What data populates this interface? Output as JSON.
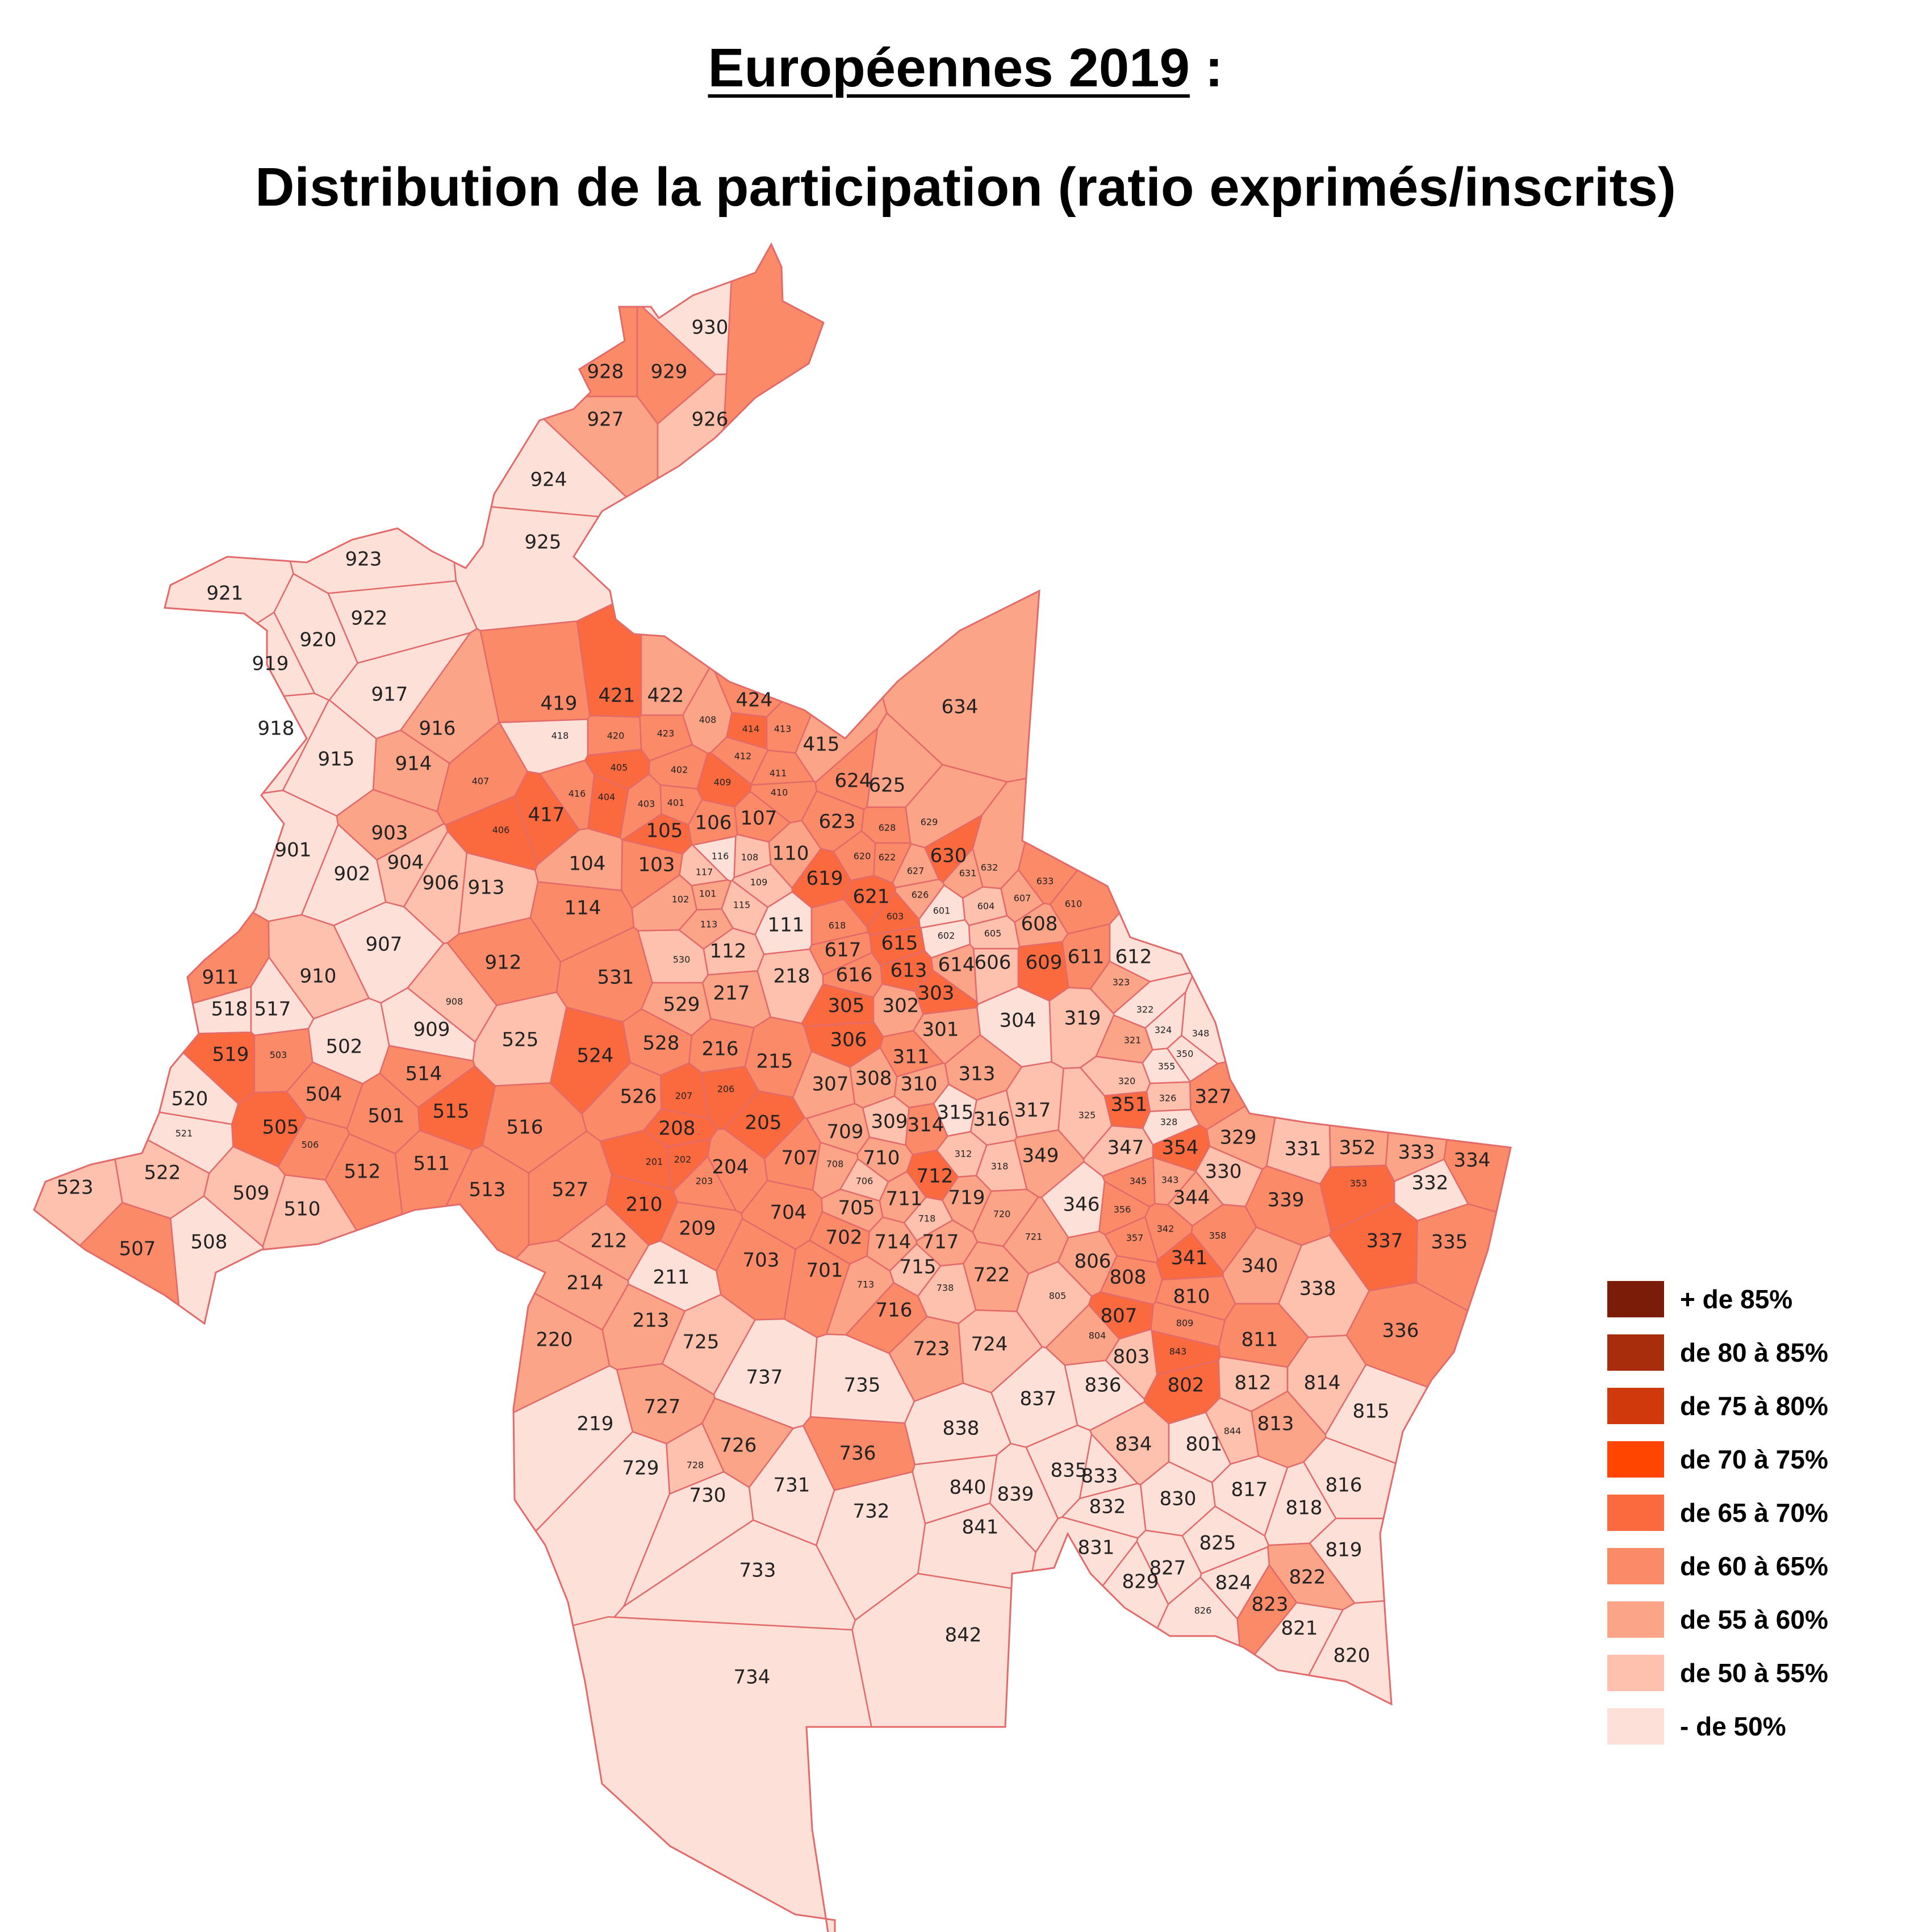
{
  "title": {
    "main": "Européennes 2019",
    "suffix": " :",
    "subtitle": "Distribution de la participation (ratio exprimés/inscrits)"
  },
  "legend": [
    {
      "label": "+ de 85%",
      "color": "#7a1c08"
    },
    {
      "label": "de 80 à 85%",
      "color": "#a82d0d"
    },
    {
      "label": "de 75 à 80%",
      "color": "#d0390c"
    },
    {
      "label": "de 70 à 75%",
      "color": "#ff4500"
    },
    {
      "label": "de 65 à 70%",
      "color": "#fb6a3f"
    },
    {
      "label": "de 60 à 65%",
      "color": "#fb8a68"
    },
    {
      "label": "de 55 à 60%",
      "color": "#fca487"
    },
    {
      "label": "de 50 à 55%",
      "color": "#fdc1ae"
    },
    {
      "label": "- de 50%",
      "color": "#fde0d8"
    }
  ],
  "bureaux": [
    {
      "id": "930",
      "cls": 8
    },
    {
      "id": "928",
      "cls": 5
    },
    {
      "id": "929",
      "cls": 5
    },
    {
      "id": "927",
      "cls": 6
    },
    {
      "id": "926",
      "cls": 7
    },
    {
      "id": "924",
      "cls": 8
    },
    {
      "id": "925",
      "cls": 8
    },
    {
      "id": "923",
      "cls": 8
    },
    {
      "id": "921",
      "cls": 8
    },
    {
      "id": "922",
      "cls": 8
    },
    {
      "id": "920",
      "cls": 8
    },
    {
      "id": "919",
      "cls": 8
    },
    {
      "id": "918",
      "cls": 8
    },
    {
      "id": "917",
      "cls": 8
    },
    {
      "id": "915",
      "cls": 8
    },
    {
      "id": "916",
      "cls": 6
    },
    {
      "id": "914",
      "cls": 6
    },
    {
      "id": "901",
      "cls": 8
    },
    {
      "id": "902",
      "cls": 8
    },
    {
      "id": "903",
      "cls": 6
    },
    {
      "id": "904",
      "cls": 7
    },
    {
      "id": "906",
      "cls": 7
    },
    {
      "id": "913",
      "cls": 7
    },
    {
      "id": "907",
      "cls": 8
    },
    {
      "id": "910",
      "cls": 7
    },
    {
      "id": "911",
      "cls": 5
    },
    {
      "id": "912",
      "cls": 5
    },
    {
      "id": "908",
      "cls": 7
    },
    {
      "id": "909",
      "cls": 8
    },
    {
      "id": "518",
      "cls": 8
    },
    {
      "id": "517",
      "cls": 8
    },
    {
      "id": "519",
      "cls": 4
    },
    {
      "id": "503",
      "cls": 5
    },
    {
      "id": "502",
      "cls": 8
    },
    {
      "id": "504",
      "cls": 5
    },
    {
      "id": "514",
      "cls": 5
    },
    {
      "id": "520",
      "cls": 8
    },
    {
      "id": "521",
      "cls": 8
    },
    {
      "id": "505",
      "cls": 4
    },
    {
      "id": "506",
      "cls": 5
    },
    {
      "id": "501",
      "cls": 5
    },
    {
      "id": "515",
      "cls": 4
    },
    {
      "id": "516",
      "cls": 5
    },
    {
      "id": "522",
      "cls": 7
    },
    {
      "id": "523",
      "cls": 7
    },
    {
      "id": "512",
      "cls": 5
    },
    {
      "id": "511",
      "cls": 5
    },
    {
      "id": "513",
      "cls": 5
    },
    {
      "id": "509",
      "cls": 7
    },
    {
      "id": "510",
      "cls": 7
    },
    {
      "id": "507",
      "cls": 5
    },
    {
      "id": "508",
      "cls": 8
    },
    {
      "id": "525",
      "cls": 7
    },
    {
      "id": "524",
      "cls": 4
    },
    {
      "id": "526",
      "cls": 5
    },
    {
      "id": "527",
      "cls": 5
    },
    {
      "id": "531",
      "cls": 5
    },
    {
      "id": "530",
      "cls": 7
    },
    {
      "id": "529",
      "cls": 6
    },
    {
      "id": "528",
      "cls": 5
    },
    {
      "id": "419",
      "cls": 5
    },
    {
      "id": "421",
      "cls": 4
    },
    {
      "id": "422",
      "cls": 6
    },
    {
      "id": "424",
      "cls": 5
    },
    {
      "id": "418",
      "cls": 8
    },
    {
      "id": "420",
      "cls": 5
    },
    {
      "id": "423",
      "cls": 5
    },
    {
      "id": "408",
      "cls": 6
    },
    {
      "id": "414",
      "cls": 4
    },
    {
      "id": "413",
      "cls": 5
    },
    {
      "id": "415",
      "cls": 6
    },
    {
      "id": "407",
      "cls": 5
    },
    {
      "id": "405",
      "cls": 4
    },
    {
      "id": "402",
      "cls": 5
    },
    {
      "id": "412",
      "cls": 5
    },
    {
      "id": "411",
      "cls": 5
    },
    {
      "id": "409",
      "cls": 4
    },
    {
      "id": "410",
      "cls": 5
    },
    {
      "id": "417",
      "cls": 4
    },
    {
      "id": "416",
      "cls": 5
    },
    {
      "id": "404",
      "cls": 4
    },
    {
      "id": "403",
      "cls": 5
    },
    {
      "id": "401",
      "cls": 5
    },
    {
      "id": "406",
      "cls": 4
    },
    {
      "id": "105",
      "cls": 4
    },
    {
      "id": "106",
      "cls": 5
    },
    {
      "id": "107",
      "cls": 5
    },
    {
      "id": "104",
      "cls": 6
    },
    {
      "id": "103",
      "cls": 5
    },
    {
      "id": "116",
      "cls": 8
    },
    {
      "id": "108",
      "cls": 7
    },
    {
      "id": "110",
      "cls": 6
    },
    {
      "id": "117",
      "cls": 7
    },
    {
      "id": "101",
      "cls": 6
    },
    {
      "id": "109",
      "cls": 7
    },
    {
      "id": "102",
      "cls": 6
    },
    {
      "id": "115",
      "cls": 7
    },
    {
      "id": "113",
      "cls": 6
    },
    {
      "id": "114",
      "cls": 5
    },
    {
      "id": "111",
      "cls": 8
    },
    {
      "id": "112",
      "cls": 7
    },
    {
      "id": "217",
      "cls": 6
    },
    {
      "id": "218",
      "cls": 7
    },
    {
      "id": "215",
      "cls": 5
    },
    {
      "id": "216",
      "cls": 5
    },
    {
      "id": "207",
      "cls": 4
    },
    {
      "id": "206",
      "cls": 4
    },
    {
      "id": "205",
      "cls": 4
    },
    {
      "id": "208",
      "cls": 4
    },
    {
      "id": "201",
      "cls": 4
    },
    {
      "id": "202",
      "cls": 4
    },
    {
      "id": "203",
      "cls": 5
    },
    {
      "id": "204",
      "cls": 5
    },
    {
      "id": "210",
      "cls": 4
    },
    {
      "id": "209",
      "cls": 5
    },
    {
      "id": "212",
      "cls": 6
    },
    {
      "id": "211",
      "cls": 8
    },
    {
      "id": "214",
      "cls": 6
    },
    {
      "id": "213",
      "cls": 6
    },
    {
      "id": "220",
      "cls": 6
    },
    {
      "id": "219",
      "cls": 8
    },
    {
      "id": "634",
      "cls": 6
    },
    {
      "id": "624",
      "cls": 5
    },
    {
      "id": "625",
      "cls": 6
    },
    {
      "id": "623",
      "cls": 5
    },
    {
      "id": "628",
      "cls": 5
    },
    {
      "id": "629",
      "cls": 6
    },
    {
      "id": "630",
      "cls": 4
    },
    {
      "id": "620",
      "cls": 5
    },
    {
      "id": "622",
      "cls": 5
    },
    {
      "id": "627",
      "cls": 6
    },
    {
      "id": "631",
      "cls": 6
    },
    {
      "id": "632",
      "cls": 6
    },
    {
      "id": "633",
      "cls": 5
    },
    {
      "id": "619",
      "cls": 4
    },
    {
      "id": "621",
      "cls": 4
    },
    {
      "id": "626",
      "cls": 6
    },
    {
      "id": "604",
      "cls": 7
    },
    {
      "id": "607",
      "cls": 6
    },
    {
      "id": "610",
      "cls": 5
    },
    {
      "id": "603",
      "cls": 4
    },
    {
      "id": "601",
      "cls": 8
    },
    {
      "id": "618",
      "cls": 5
    },
    {
      "id": "602",
      "cls": 8
    },
    {
      "id": "605",
      "cls": 7
    },
    {
      "id": "608",
      "cls": 6
    },
    {
      "id": "617",
      "cls": 5
    },
    {
      "id": "615",
      "cls": 4
    },
    {
      "id": "614",
      "cls": 6
    },
    {
      "id": "606",
      "cls": 7
    },
    {
      "id": "609",
      "cls": 4
    },
    {
      "id": "611",
      "cls": 5
    },
    {
      "id": "612",
      "cls": 8
    },
    {
      "id": "616",
      "cls": 5
    },
    {
      "id": "613",
      "cls": 4
    },
    {
      "id": "305",
      "cls": 4
    },
    {
      "id": "302",
      "cls": 6
    },
    {
      "id": "303",
      "cls": 4
    },
    {
      "id": "304",
      "cls": 8
    },
    {
      "id": "319",
      "cls": 7
    },
    {
      "id": "323",
      "cls": 6
    },
    {
      "id": "322",
      "cls": 8
    },
    {
      "id": "324",
      "cls": 8
    },
    {
      "id": "348",
      "cls": 8
    },
    {
      "id": "306",
      "cls": 4
    },
    {
      "id": "301",
      "cls": 6
    },
    {
      "id": "321",
      "cls": 6
    },
    {
      "id": "350",
      "cls": 8
    },
    {
      "id": "355",
      "cls": 8
    },
    {
      "id": "311",
      "cls": 5
    },
    {
      "id": "313",
      "cls": 6
    },
    {
      "id": "320",
      "cls": 7
    },
    {
      "id": "326",
      "cls": 7
    },
    {
      "id": "327",
      "cls": 5
    },
    {
      "id": "307",
      "cls": 6
    },
    {
      "id": "308",
      "cls": 6
    },
    {
      "id": "310",
      "cls": 6
    },
    {
      "id": "317",
      "cls": 7
    },
    {
      "id": "351",
      "cls": 4
    },
    {
      "id": "328",
      "cls": 8
    },
    {
      "id": "325",
      "cls": 7
    },
    {
      "id": "309",
      "cls": 7
    },
    {
      "id": "314",
      "cls": 5
    },
    {
      "id": "315",
      "cls": 8
    },
    {
      "id": "316",
      "cls": 7
    },
    {
      "id": "354",
      "cls": 4
    },
    {
      "id": "329",
      "cls": 6
    },
    {
      "id": "331",
      "cls": 7
    },
    {
      "id": "352",
      "cls": 6
    },
    {
      "id": "333",
      "cls": 6
    },
    {
      "id": "334",
      "cls": 5
    },
    {
      "id": "312",
      "cls": 7
    },
    {
      "id": "318",
      "cls": 7
    },
    {
      "id": "349",
      "cls": 6
    },
    {
      "id": "347",
      "cls": 7
    },
    {
      "id": "330",
      "cls": 7
    },
    {
      "id": "332",
      "cls": 8
    },
    {
      "id": "345",
      "cls": 5
    },
    {
      "id": "343",
      "cls": 6
    },
    {
      "id": "344",
      "cls": 6
    },
    {
      "id": "339",
      "cls": 5
    },
    {
      "id": "353",
      "cls": 4
    },
    {
      "id": "346",
      "cls": 8
    },
    {
      "id": "356",
      "cls": 5
    },
    {
      "id": "342",
      "cls": 5
    },
    {
      "id": "358",
      "cls": 5
    },
    {
      "id": "337",
      "cls": 4
    },
    {
      "id": "335",
      "cls": 5
    },
    {
      "id": "357",
      "cls": 5
    },
    {
      "id": "341",
      "cls": 4
    },
    {
      "id": "340",
      "cls": 6
    },
    {
      "id": "338",
      "cls": 7
    },
    {
      "id": "336",
      "cls": 5
    },
    {
      "id": "709",
      "cls": 6
    },
    {
      "id": "710",
      "cls": 6
    },
    {
      "id": "707",
      "cls": 5
    },
    {
      "id": "708",
      "cls": 6
    },
    {
      "id": "712",
      "cls": 4
    },
    {
      "id": "706",
      "cls": 7
    },
    {
      "id": "711",
      "cls": 6
    },
    {
      "id": "719",
      "cls": 6
    },
    {
      "id": "704",
      "cls": 5
    },
    {
      "id": "705",
      "cls": 6
    },
    {
      "id": "718",
      "cls": 7
    },
    {
      "id": "720",
      "cls": 6
    },
    {
      "id": "714",
      "cls": 6
    },
    {
      "id": "717",
      "cls": 6
    },
    {
      "id": "721",
      "cls": 6
    },
    {
      "id": "702",
      "cls": 5
    },
    {
      "id": "715",
      "cls": 7
    },
    {
      "id": "703",
      "cls": 5
    },
    {
      "id": "701",
      "cls": 5
    },
    {
      "id": "713",
      "cls": 6
    },
    {
      "id": "722",
      "cls": 6
    },
    {
      "id": "716",
      "cls": 5
    },
    {
      "id": "738",
      "cls": 7
    },
    {
      "id": "723",
      "cls": 6
    },
    {
      "id": "724",
      "cls": 7
    },
    {
      "id": "725",
      "cls": 7
    },
    {
      "id": "737",
      "cls": 8
    },
    {
      "id": "735",
      "cls": 8
    },
    {
      "id": "727",
      "cls": 6
    },
    {
      "id": "726",
      "cls": 6
    },
    {
      "id": "736",
      "cls": 5
    },
    {
      "id": "728",
      "cls": 7
    },
    {
      "id": "729",
      "cls": 8
    },
    {
      "id": "730",
      "cls": 8
    },
    {
      "id": "731",
      "cls": 8
    },
    {
      "id": "732",
      "cls": 8
    },
    {
      "id": "733",
      "cls": 8
    },
    {
      "id": "734",
      "cls": 8
    },
    {
      "id": "806",
      "cls": 6
    },
    {
      "id": "808",
      "cls": 5
    },
    {
      "id": "805",
      "cls": 7
    },
    {
      "id": "810",
      "cls": 5
    },
    {
      "id": "807",
      "cls": 4
    },
    {
      "id": "809",
      "cls": 5
    },
    {
      "id": "804",
      "cls": 6
    },
    {
      "id": "811",
      "cls": 5
    },
    {
      "id": "843",
      "cls": 4
    },
    {
      "id": "803",
      "cls": 7
    },
    {
      "id": "802",
      "cls": 4
    },
    {
      "id": "812",
      "cls": 7
    },
    {
      "id": "814",
      "cls": 7
    },
    {
      "id": "836",
      "cls": 8
    },
    {
      "id": "837",
      "cls": 8
    },
    {
      "id": "838",
      "cls": 8
    },
    {
      "id": "815",
      "cls": 8
    },
    {
      "id": "813",
      "cls": 6
    },
    {
      "id": "844",
      "cls": 7
    },
    {
      "id": "834",
      "cls": 7
    },
    {
      "id": "801",
      "cls": 8
    },
    {
      "id": "835",
      "cls": 8
    },
    {
      "id": "833",
      "cls": 8
    },
    {
      "id": "840",
      "cls": 8
    },
    {
      "id": "839",
      "cls": 8
    },
    {
      "id": "817",
      "cls": 8
    },
    {
      "id": "816",
      "cls": 8
    },
    {
      "id": "832",
      "cls": 8
    },
    {
      "id": "830",
      "cls": 8
    },
    {
      "id": "818",
      "cls": 8
    },
    {
      "id": "841",
      "cls": 8
    },
    {
      "id": "825",
      "cls": 8
    },
    {
      "id": "831",
      "cls": 8
    },
    {
      "id": "819",
      "cls": 8
    },
    {
      "id": "827",
      "cls": 8
    },
    {
      "id": "822",
      "cls": 6
    },
    {
      "id": "829",
      "cls": 8
    },
    {
      "id": "824",
      "cls": 8
    },
    {
      "id": "823",
      "cls": 5
    },
    {
      "id": "826",
      "cls": 8
    },
    {
      "id": "821",
      "cls": 8
    },
    {
      "id": "842",
      "cls": 8
    },
    {
      "id": "820",
      "cls": 8
    }
  ]
}
